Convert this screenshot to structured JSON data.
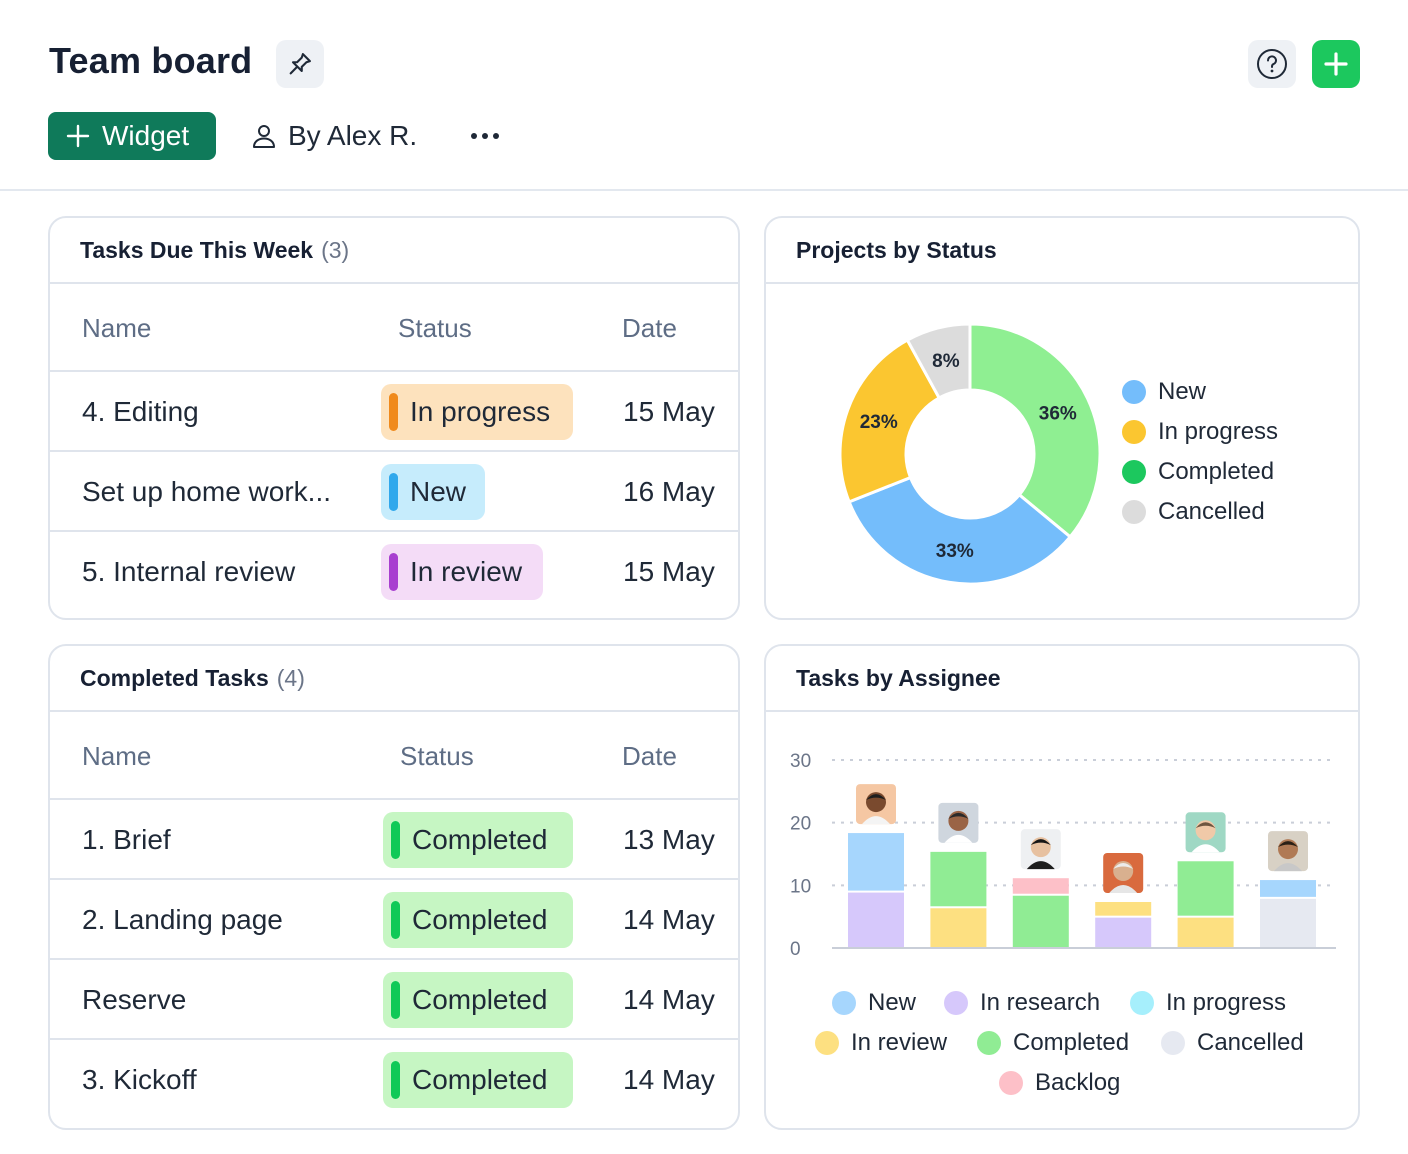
{
  "header": {
    "title": "Team board",
    "widget_label": "Widget",
    "owner_label": "By Alex R."
  },
  "tasks_due": {
    "title": "Tasks Due This Week",
    "count": "(3)",
    "columns": [
      "Name",
      "Status",
      "Date"
    ],
    "rows": [
      {
        "name": "4. Editing",
        "status": "In progress",
        "date": "15 May"
      },
      {
        "name": "Set up home work...",
        "status": "New",
        "date": "16 May"
      },
      {
        "name": "5. Internal review",
        "status": "In review",
        "date": "15 May"
      }
    ]
  },
  "completed_tasks": {
    "title": "Completed Tasks",
    "count": "(4)",
    "columns": [
      "Name",
      "Status",
      "Date"
    ],
    "rows": [
      {
        "name": "1. Brief",
        "status": "Completed",
        "date": "13 May"
      },
      {
        "name": "2. Landing page",
        "status": "Completed",
        "date": "14 May"
      },
      {
        "name": "Reserve",
        "status": "Completed",
        "date": "14 May"
      },
      {
        "name": "3. Kickoff",
        "status": "Completed",
        "date": "14 May"
      }
    ]
  },
  "projects_by_status": {
    "title": "Projects by Status",
    "legend": [
      "New",
      "In progress",
      "Completed",
      "Cancelled"
    ]
  },
  "tasks_by_assignee": {
    "title": "Tasks by Assignee",
    "legend": [
      "New",
      "In research",
      "In progress",
      "In review",
      "Completed",
      "Cancelled",
      "Backlog"
    ]
  },
  "colors": {
    "new": "#74bdfb",
    "in_progress": "#fbc630",
    "completed": "#8fef92",
    "cancelled": "#dcdcdc",
    "bar_new": "#a6d6fd",
    "bar_research": "#d6c8fb",
    "bar_in_progress": "#a6effc",
    "bar_review": "#fde081",
    "bar_completed": "#90ec94",
    "bar_cancelled": "#e6e9f1",
    "bar_backlog": "#fdc0c8",
    "brand_green": "#1cc85e",
    "widget_green": "#0f7a5a"
  },
  "chart_data": [
    {
      "type": "pie",
      "title": "Projects by Status",
      "labels": [
        "New",
        "In progress",
        "Completed",
        "Cancelled"
      ],
      "values": [
        33,
        23,
        36,
        8
      ],
      "value_labels": [
        "33%",
        "23%",
        "36%",
        "8%"
      ],
      "legend": "right"
    },
    {
      "type": "bar",
      "stacked": true,
      "title": "Tasks by Assignee",
      "categories": [
        "",
        "",
        "",
        "",
        "",
        ""
      ],
      "ylim": [
        0,
        30
      ],
      "yticks": [
        0,
        10,
        20,
        30
      ],
      "grid": true,
      "legend": "bottom",
      "series": [
        {
          "name": "New",
          "values": [
            9.5,
            0,
            0,
            0,
            0,
            3
          ]
        },
        {
          "name": "In research",
          "values": [
            9,
            0,
            0,
            5,
            0,
            0
          ]
        },
        {
          "name": "In progress",
          "values": [
            0,
            0,
            0,
            0,
            0,
            0
          ]
        },
        {
          "name": "In review",
          "values": [
            0,
            6.5,
            0,
            2.5,
            5,
            0
          ]
        },
        {
          "name": "Completed",
          "values": [
            0,
            9,
            8.5,
            0,
            9,
            0
          ]
        },
        {
          "name": "Cancelled",
          "values": [
            0,
            0,
            0,
            0,
            0,
            8
          ]
        },
        {
          "name": "Backlog",
          "values": [
            0,
            0,
            2.8,
            0,
            0,
            0
          ]
        }
      ]
    }
  ]
}
